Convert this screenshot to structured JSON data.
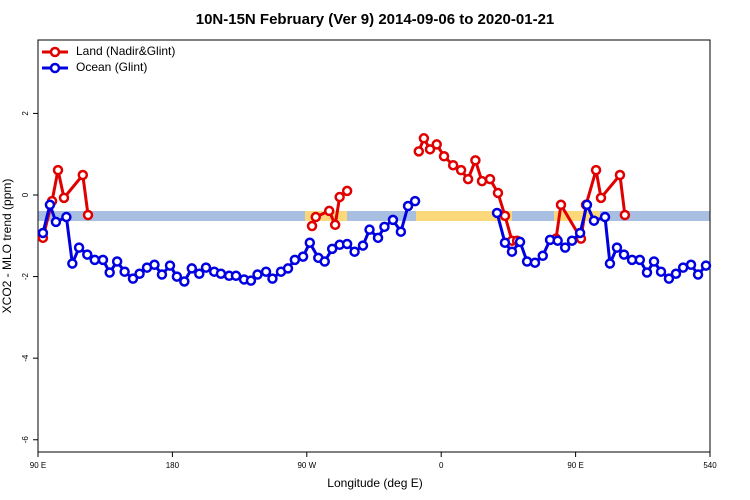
{
  "chart_data": {
    "type": "line",
    "title": "10N-15N February (Ver 9)   2014-09-06 to 2020-01-21",
    "x_label": "Longitude (deg E)",
    "y_label": "XCO2 - MLO trend (ppm)",
    "xlim": [
      90,
      540
    ],
    "ylim": [
      -6.3,
      3.8
    ],
    "xticks": [
      {
        "value": 90,
        "label": "90 E"
      },
      180,
      {
        "value": 270,
        "label": "90 W"
      },
      {
        "value": 360,
        "label": "0"
      },
      {
        "value": 450,
        "label": "90 E"
      },
      540
    ],
    "yticks": [
      -6,
      -4,
      -2,
      0,
      2
    ],
    "grid": false,
    "legend": "top-left",
    "series": [
      {
        "name": "Land (Nadir&Glint)",
        "color": "#e00000",
        "x": [
          93.3,
          99.4,
          103.4,
          107.4,
          120,
          123.5,
          200,
          273.5,
          276,
          285,
          289,
          292,
          297,
          320,
          345,
          348.4,
          352.5,
          357,
          361.9,
          368,
          373.3,
          378,
          382.9,
          387.3,
          392.7,
          398,
          402.7,
          407.4,
          410.8,
          425,
          436.9,
          440.2,
          453.6,
          457,
          463.7,
          467,
          479.7,
          483
        ],
        "values": [
          -1.05,
          -0.15,
          0.61,
          -0.07,
          0.49,
          -0.49,
          null,
          -0.76,
          -0.54,
          -0.39,
          -0.73,
          -0.05,
          0.1,
          null,
          1.07,
          1.39,
          1.12,
          1.24,
          0.95,
          0.73,
          0.61,
          0.39,
          0.85,
          0.34,
          0.39,
          0.05,
          -0.51,
          -1.12,
          -1.12,
          null,
          -1.07,
          -0.24,
          -1.07,
          -0.24,
          0.61,
          -0.07,
          0.49,
          -0.49
        ]
      },
      {
        "name": "Ocean (Glint)",
        "color": "#0000e0",
        "x": [
          93.3,
          98,
          102,
          109,
          113,
          117.5,
          123,
          128,
          133.5,
          138,
          143,
          148,
          153.6,
          158,
          163,
          168,
          173,
          178.4,
          183,
          188,
          193,
          198,
          202.5,
          208,
          212.5,
          218,
          222.6,
          228,
          232.6,
          237,
          242.7,
          247,
          252.7,
          257.4,
          262,
          267.5,
          272,
          277.7,
          282,
          287,
          292,
          297,
          302,
          307.6,
          312,
          317.7,
          322,
          327.7,
          333,
          337.8,
          342.5,
          370,
          397.4,
          402.7,
          407.4,
          412.8,
          417.5,
          422.8,
          428,
          432.9,
          438,
          443,
          447.6,
          453,
          457.6,
          462.3,
          469.7,
          473,
          477.7,
          482.4,
          487.8,
          493,
          497.8,
          502.5,
          507.2,
          512.5,
          517.2,
          522,
          527.3,
          532,
          537.3
        ],
        "values": [
          -0.93,
          -0.24,
          -0.66,
          -0.54,
          -1.68,
          -1.29,
          -1.46,
          -1.59,
          -1.59,
          -1.9,
          -1.63,
          -1.88,
          -2.05,
          -1.93,
          -1.78,
          -1.71,
          -1.95,
          -1.73,
          -2.0,
          -2.12,
          -1.8,
          -1.93,
          -1.78,
          -1.88,
          -1.93,
          -1.98,
          -1.98,
          -2.07,
          -2.1,
          -1.95,
          -1.88,
          -2.05,
          -1.88,
          -1.8,
          -1.59,
          -1.51,
          -1.17,
          -1.54,
          -1.63,
          -1.32,
          -1.22,
          -1.2,
          -1.39,
          -1.24,
          -0.85,
          -1.05,
          -0.78,
          -0.61,
          -0.9,
          -0.27,
          -0.15,
          null,
          -0.44,
          -1.17,
          -1.39,
          -1.15,
          -1.63,
          -1.66,
          -1.49,
          -1.1,
          -1.12,
          -1.29,
          -1.12,
          -0.93,
          -0.24,
          -0.63,
          -0.54,
          -1.68,
          -1.29,
          -1.46,
          -1.59,
          -1.59,
          -1.9,
          -1.63,
          -1.88,
          -2.05,
          -1.93,
          -1.78,
          -1.71,
          -1.95,
          -1.73
        ]
      }
    ]
  }
}
